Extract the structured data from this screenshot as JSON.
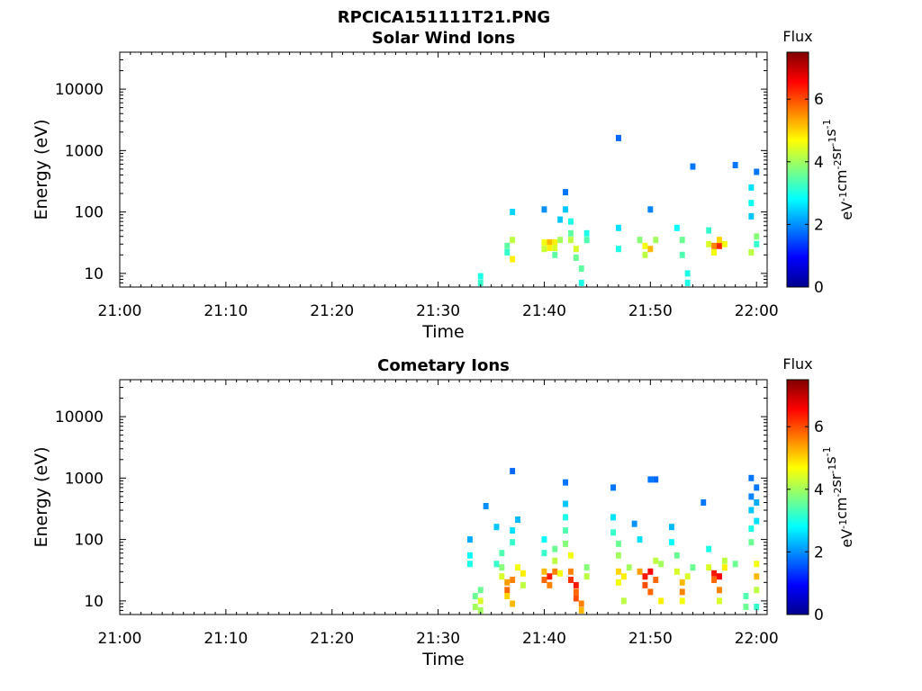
{
  "page_title": "RPCICA151111T21.PNG",
  "chart_data": [
    {
      "type": "heatmap",
      "title": "Solar Wind Ions",
      "xlabel": "Time",
      "ylabel": "Energy (eV)",
      "yscale": "log",
      "xlim": [
        "21:00",
        "22:01"
      ],
      "ylim": [
        6,
        40000
      ],
      "x_ticks": [
        "21:00",
        "21:10",
        "21:20",
        "21:30",
        "21:40",
        "21:50",
        "22:00"
      ],
      "y_ticks": [
        "10",
        "100",
        "1000",
        "10000"
      ],
      "colorbar": {
        "label": "Flux",
        "units": "eV-1 cm-2 sr-1 s-1",
        "min": 0,
        "max": 7.5,
        "ticks": [
          0,
          2,
          4,
          6
        ],
        "colormap": "jet"
      },
      "cells": [
        {
          "t": "21:34",
          "e": 9,
          "f": 3.0
        },
        {
          "t": "21:34",
          "e": 7,
          "f": 3.2
        },
        {
          "t": "21:36.5",
          "e": 28,
          "f": 3.5
        },
        {
          "t": "21:36.5",
          "e": 22,
          "f": 3.2
        },
        {
          "t": "21:37",
          "e": 100,
          "f": 2.5
        },
        {
          "t": "21:37",
          "e": 35,
          "f": 4.2
        },
        {
          "t": "21:37",
          "e": 17,
          "f": 4.8
        },
        {
          "t": "21:40",
          "e": 32,
          "f": 4.6
        },
        {
          "t": "21:40",
          "e": 25,
          "f": 4.3
        },
        {
          "t": "21:40",
          "e": 110,
          "f": 2.0
        },
        {
          "t": "21:40.5",
          "e": 32,
          "f": 5.2
        },
        {
          "t": "21:40.5",
          "e": 26,
          "f": 4.8
        },
        {
          "t": "21:41",
          "e": 32,
          "f": 4.8
        },
        {
          "t": "21:41",
          "e": 26,
          "f": 4.4
        },
        {
          "t": "21:41",
          "e": 20,
          "f": 3.5
        },
        {
          "t": "21:41.5",
          "e": 35,
          "f": 4.0
        },
        {
          "t": "21:41.5",
          "e": 75,
          "f": 2.4
        },
        {
          "t": "21:42",
          "e": 210,
          "f": 1.8
        },
        {
          "t": "21:42",
          "e": 110,
          "f": 2.4
        },
        {
          "t": "21:42.5",
          "e": 70,
          "f": 3.0
        },
        {
          "t": "21:42.5",
          "e": 45,
          "f": 3.5
        },
        {
          "t": "21:42.5",
          "e": 35,
          "f": 4.2
        },
        {
          "t": "21:43",
          "e": 25,
          "f": 4.4
        },
        {
          "t": "21:43",
          "e": 18,
          "f": 3.6
        },
        {
          "t": "21:43.5",
          "e": 12,
          "f": 3.5
        },
        {
          "t": "21:43.5",
          "e": 7,
          "f": 3.0
        },
        {
          "t": "21:44",
          "e": 45,
          "f": 3.0
        },
        {
          "t": "21:44",
          "e": 35,
          "f": 3.4
        },
        {
          "t": "21:47",
          "e": 1600,
          "f": 1.7
        },
        {
          "t": "21:47",
          "e": 55,
          "f": 2.6
        },
        {
          "t": "21:47",
          "e": 25,
          "f": 3.0
        },
        {
          "t": "21:49",
          "e": 35,
          "f": 3.8
        },
        {
          "t": "21:49.5",
          "e": 28,
          "f": 4.6
        },
        {
          "t": "21:49.5",
          "e": 20,
          "f": 4.2
        },
        {
          "t": "21:50",
          "e": 25,
          "f": 5.2
        },
        {
          "t": "21:50",
          "e": 110,
          "f": 1.9
        },
        {
          "t": "21:50.5",
          "e": 35,
          "f": 4.0
        },
        {
          "t": "21:52.5",
          "e": 55,
          "f": 2.8
        },
        {
          "t": "21:53",
          "e": 35,
          "f": 3.6
        },
        {
          "t": "21:53",
          "e": 20,
          "f": 3.4
        },
        {
          "t": "21:53.5",
          "e": 10,
          "f": 3.0
        },
        {
          "t": "21:53.5",
          "e": 7,
          "f": 3.0
        },
        {
          "t": "21:54",
          "e": 550,
          "f": 1.8
        },
        {
          "t": "21:55.5",
          "e": 50,
          "f": 3.2
        },
        {
          "t": "21:55.5",
          "e": 30,
          "f": 4.4
        },
        {
          "t": "21:56",
          "e": 28,
          "f": 5.6
        },
        {
          "t": "21:56",
          "e": 22,
          "f": 4.6
        },
        {
          "t": "21:56.5",
          "e": 28,
          "f": 6.3
        },
        {
          "t": "21:56.5",
          "e": 35,
          "f": 5.0
        },
        {
          "t": "21:57",
          "e": 30,
          "f": 4.6
        },
        {
          "t": "21:58",
          "e": 580,
          "f": 1.8
        },
        {
          "t": "21:59.5",
          "e": 250,
          "f": 2.6
        },
        {
          "t": "21:59.5",
          "e": 140,
          "f": 2.9
        },
        {
          "t": "21:59.5",
          "e": 85,
          "f": 2.4
        },
        {
          "t": "21:59.5",
          "e": 22,
          "f": 4.2
        },
        {
          "t": "22:00",
          "e": 450,
          "f": 1.8
        },
        {
          "t": "22:00",
          "e": 40,
          "f": 3.8
        },
        {
          "t": "22:00",
          "e": 30,
          "f": 3.2
        }
      ]
    },
    {
      "type": "heatmap",
      "title": "Cometary Ions",
      "xlabel": "Time",
      "ylabel": "Energy (eV)",
      "yscale": "log",
      "xlim": [
        "21:00",
        "22:01"
      ],
      "ylim": [
        6,
        40000
      ],
      "x_ticks": [
        "21:00",
        "21:10",
        "21:20",
        "21:30",
        "21:40",
        "21:50",
        "22:00"
      ],
      "y_ticks": [
        "10",
        "100",
        "1000",
        "10000"
      ],
      "colorbar": {
        "label": "Flux",
        "units": "eV-1 cm-2 sr-1 s-1",
        "min": 0,
        "max": 7.5,
        "ticks": [
          0,
          2,
          4,
          6
        ],
        "colormap": "jet"
      },
      "cells": [
        {
          "t": "21:33",
          "e": 100,
          "f": 2.2
        },
        {
          "t": "21:33",
          "e": 55,
          "f": 2.8
        },
        {
          "t": "21:33",
          "e": 40,
          "f": 3.0
        },
        {
          "t": "21:33.5",
          "e": 12,
          "f": 3.6
        },
        {
          "t": "21:33.5",
          "e": 8,
          "f": 4.0
        },
        {
          "t": "21:34",
          "e": 15,
          "f": 3.6
        },
        {
          "t": "21:34",
          "e": 10,
          "f": 4.4
        },
        {
          "t": "21:34",
          "e": 7,
          "f": 4.0
        },
        {
          "t": "21:34.5",
          "e": 350,
          "f": 2.0
        },
        {
          "t": "21:35.5",
          "e": 160,
          "f": 2.4
        },
        {
          "t": "21:35.5",
          "e": 40,
          "f": 3.2
        },
        {
          "t": "21:36",
          "e": 60,
          "f": 3.4
        },
        {
          "t": "21:36",
          "e": 35,
          "f": 3.8
        },
        {
          "t": "21:36",
          "e": 25,
          "f": 4.4
        },
        {
          "t": "21:36.5",
          "e": 20,
          "f": 5.4
        },
        {
          "t": "21:36.5",
          "e": 15,
          "f": 5.8
        },
        {
          "t": "21:36.5",
          "e": 12,
          "f": 5.0
        },
        {
          "t": "21:37",
          "e": 1300,
          "f": 1.7
        },
        {
          "t": "21:37",
          "e": 140,
          "f": 2.6
        },
        {
          "t": "21:37",
          "e": 90,
          "f": 3.2
        },
        {
          "t": "21:37",
          "e": 22,
          "f": 5.6
        },
        {
          "t": "21:37",
          "e": 9,
          "f": 5.2
        },
        {
          "t": "21:37.5",
          "e": 35,
          "f": 4.6
        },
        {
          "t": "21:37.5",
          "e": 210,
          "f": 2.3
        },
        {
          "t": "21:38",
          "e": 28,
          "f": 4.8
        },
        {
          "t": "21:38",
          "e": 18,
          "f": 4.2
        },
        {
          "t": "21:40",
          "e": 100,
          "f": 2.8
        },
        {
          "t": "21:40",
          "e": 60,
          "f": 3.2
        },
        {
          "t": "21:40",
          "e": 30,
          "f": 5.2
        },
        {
          "t": "21:40",
          "e": 22,
          "f": 5.8
        },
        {
          "t": "21:40.5",
          "e": 25,
          "f": 6.4
        },
        {
          "t": "21:40.5",
          "e": 18,
          "f": 5.6
        },
        {
          "t": "21:41",
          "e": 30,
          "f": 5.6
        },
        {
          "t": "21:41",
          "e": 45,
          "f": 4.2
        },
        {
          "t": "21:41",
          "e": 70,
          "f": 3.6
        },
        {
          "t": "21:41.5",
          "e": 28,
          "f": 4.6
        },
        {
          "t": "21:42",
          "e": 850,
          "f": 1.8
        },
        {
          "t": "21:42",
          "e": 380,
          "f": 2.4
        },
        {
          "t": "21:42",
          "e": 230,
          "f": 3.0
        },
        {
          "t": "21:42",
          "e": 140,
          "f": 3.4
        },
        {
          "t": "21:42",
          "e": 85,
          "f": 3.8
        },
        {
          "t": "21:42.5",
          "e": 55,
          "f": 4.6
        },
        {
          "t": "21:42.5",
          "e": 30,
          "f": 5.6
        },
        {
          "t": "21:42.5",
          "e": 22,
          "f": 6.2
        },
        {
          "t": "21:43",
          "e": 18,
          "f": 6.4
        },
        {
          "t": "21:43",
          "e": 14,
          "f": 5.8
        },
        {
          "t": "21:43",
          "e": 11,
          "f": 6.0
        },
        {
          "t": "21:43.5",
          "e": 9,
          "f": 5.6
        },
        {
          "t": "21:43.5",
          "e": 7,
          "f": 5.2
        },
        {
          "t": "21:44",
          "e": 25,
          "f": 4.2
        },
        {
          "t": "21:44",
          "e": 35,
          "f": 3.8
        },
        {
          "t": "21:46.5",
          "e": 700,
          "f": 1.8
        },
        {
          "t": "21:46.5",
          "e": 230,
          "f": 2.6
        },
        {
          "t": "21:46.5",
          "e": 130,
          "f": 3.2
        },
        {
          "t": "21:47",
          "e": 85,
          "f": 3.6
        },
        {
          "t": "21:47",
          "e": 55,
          "f": 4.0
        },
        {
          "t": "21:47",
          "e": 30,
          "f": 5.0
        },
        {
          "t": "21:47",
          "e": 20,
          "f": 4.6
        },
        {
          "t": "21:47.5",
          "e": 25,
          "f": 4.8
        },
        {
          "t": "21:47.5",
          "e": 10,
          "f": 4.2
        },
        {
          "t": "21:48",
          "e": 35,
          "f": 4.0
        },
        {
          "t": "21:48.5",
          "e": 180,
          "f": 2.0
        },
        {
          "t": "21:49",
          "e": 100,
          "f": 2.6
        },
        {
          "t": "21:49",
          "e": 30,
          "f": 5.4
        },
        {
          "t": "21:49.5",
          "e": 25,
          "f": 6.4
        },
        {
          "t": "21:49.5",
          "e": 18,
          "f": 6.0
        },
        {
          "t": "21:50",
          "e": 30,
          "f": 6.6
        },
        {
          "t": "21:50",
          "e": 14,
          "f": 5.8
        },
        {
          "t": "21:50",
          "e": 950,
          "f": 1.8
        },
        {
          "t": "21:50.5",
          "e": 22,
          "f": 5.8
        },
        {
          "t": "21:50.5",
          "e": 45,
          "f": 4.2
        },
        {
          "t": "21:50.5",
          "e": 950,
          "f": 1.7
        },
        {
          "t": "21:51",
          "e": 40,
          "f": 4.0
        },
        {
          "t": "21:51",
          "e": 10,
          "f": 4.8
        },
        {
          "t": "21:52",
          "e": 160,
          "f": 2.3
        },
        {
          "t": "21:52",
          "e": 90,
          "f": 2.8
        },
        {
          "t": "21:52.5",
          "e": 55,
          "f": 3.6
        },
        {
          "t": "21:52.5",
          "e": 30,
          "f": 4.4
        },
        {
          "t": "21:53",
          "e": 20,
          "f": 5.2
        },
        {
          "t": "21:53",
          "e": 14,
          "f": 5.6
        },
        {
          "t": "21:53",
          "e": 10,
          "f": 4.6
        },
        {
          "t": "21:53.5",
          "e": 25,
          "f": 4.4
        },
        {
          "t": "21:54",
          "e": 35,
          "f": 3.6
        },
        {
          "t": "21:55",
          "e": 400,
          "f": 1.8
        },
        {
          "t": "21:55.5",
          "e": 70,
          "f": 3.0
        },
        {
          "t": "21:55.5",
          "e": 35,
          "f": 4.4
        },
        {
          "t": "21:56",
          "e": 22,
          "f": 5.8
        },
        {
          "t": "21:56",
          "e": 28,
          "f": 6.4
        },
        {
          "t": "21:56.5",
          "e": 25,
          "f": 6.6
        },
        {
          "t": "21:56.5",
          "e": 15,
          "f": 5.6
        },
        {
          "t": "21:56.5",
          "e": 10,
          "f": 4.4
        },
        {
          "t": "21:57",
          "e": 35,
          "f": 4.8
        },
        {
          "t": "21:57",
          "e": 45,
          "f": 4.2
        },
        {
          "t": "21:58",
          "e": 40,
          "f": 3.6
        },
        {
          "t": "21:59",
          "e": 12,
          "f": 3.4
        },
        {
          "t": "21:59",
          "e": 8,
          "f": 3.6
        },
        {
          "t": "21:59.5",
          "e": 1000,
          "f": 1.8
        },
        {
          "t": "21:59.5",
          "e": 500,
          "f": 1.9
        },
        {
          "t": "21:59.5",
          "e": 300,
          "f": 2.4
        },
        {
          "t": "21:59.5",
          "e": 150,
          "f": 3.0
        },
        {
          "t": "21:59.5",
          "e": 90,
          "f": 3.6
        },
        {
          "t": "22:00",
          "e": 700,
          "f": 1.8
        },
        {
          "t": "22:00",
          "e": 400,
          "f": 2.2
        },
        {
          "t": "22:00",
          "e": 200,
          "f": 2.6
        },
        {
          "t": "22:00",
          "e": 40,
          "f": 4.6
        },
        {
          "t": "22:00",
          "e": 25,
          "f": 5.2
        },
        {
          "t": "22:00",
          "e": 15,
          "f": 4.2
        },
        {
          "t": "22:00",
          "e": 8,
          "f": 3.2
        }
      ]
    }
  ]
}
